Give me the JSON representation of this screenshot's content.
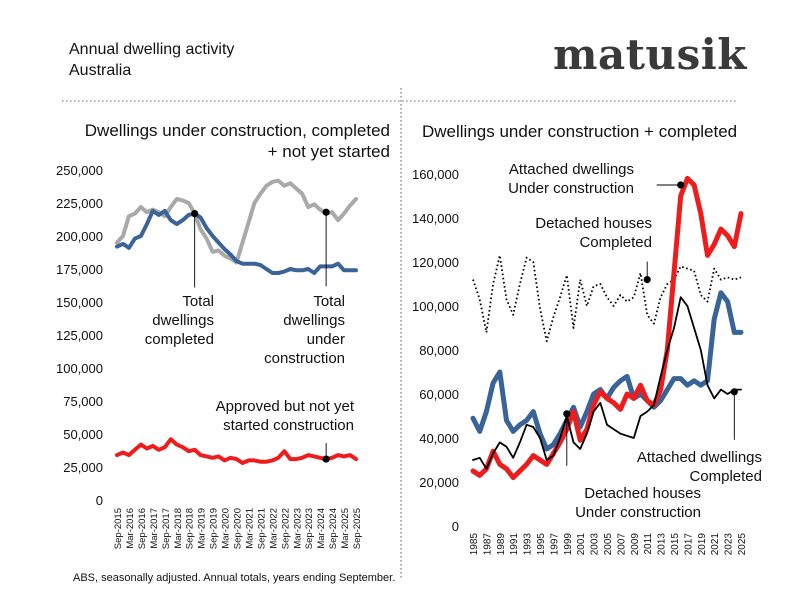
{
  "header": {
    "title": "Annual dwelling activity",
    "subtitle": "Australia",
    "brand": "matusik",
    "footer": "ABS, seasonally adjusted.  Annual totals, years ending September."
  },
  "colors": {
    "grey": "#a9a9a9",
    "blue": "#3a6397",
    "red": "#ee1c1c",
    "black": "#000000"
  },
  "chart_data": [
    {
      "type": "line",
      "title_lines": [
        "Dwellings under construction, completed",
        "+ not yet started"
      ],
      "ylim": [
        0,
        250000
      ],
      "yticks": [
        "0",
        "25,000",
        "50,000",
        "75,000",
        "100,000",
        "125,000",
        "150,000",
        "175,000",
        "200,000",
        "225,000",
        "250,000"
      ],
      "xlim": [
        2015.75,
        2025.75
      ],
      "xtick_labels": [
        "Sep-2015",
        "Mar-2016",
        "Sep-2016",
        "Mar-2017",
        "Sep-2017",
        "Mar-2018",
        "Sep-2018",
        "Mar-2019",
        "Sep-2019",
        "Mar-2020",
        "Sep-2020",
        "Mar-2021",
        "Sep-2021",
        "Mar-2022",
        "Sep-2022",
        "Mar-2023",
        "Sep-2023",
        "Mar-2024",
        "Sep-2024",
        "Mar-2025",
        "Sep-2025"
      ],
      "series": [
        {
          "color": "grey",
          "x": [
            2015.75,
            2016.0,
            2016.25,
            2016.5,
            2016.75,
            2017.0,
            2017.25,
            2017.5,
            2017.75,
            2018.0,
            2018.25,
            2018.5,
            2018.75,
            2019.0,
            2019.25,
            2019.5,
            2019.75,
            2020.0,
            2020.25,
            2020.5,
            2020.75,
            2021.0,
            2021.25,
            2021.5,
            2021.75,
            2022.0,
            2022.25,
            2022.5,
            2022.75,
            2023.0,
            2023.25,
            2023.5,
            2023.75,
            2024.0,
            2024.25,
            2024.5,
            2024.75,
            2025.0,
            2025.25,
            2025.5,
            2025.75
          ],
          "y": [
            195000,
            200000,
            215000,
            217000,
            222000,
            218000,
            220000,
            218000,
            215000,
            222000,
            228000,
            227000,
            225000,
            217000,
            205000,
            198000,
            188000,
            189000,
            185000,
            183000,
            180000,
            195000,
            210000,
            225000,
            232000,
            238000,
            241000,
            242000,
            238000,
            240000,
            236000,
            232000,
            222000,
            224000,
            220000,
            217000,
            218000,
            212000,
            217000,
            223000,
            228000
          ]
        },
        {
          "color": "blue",
          "x": [
            2015.75,
            2016.0,
            2016.25,
            2016.5,
            2016.75,
            2017.0,
            2017.25,
            2017.5,
            2017.75,
            2018.0,
            2018.25,
            2018.5,
            2018.75,
            2019.0,
            2019.25,
            2019.5,
            2019.75,
            2020.0,
            2020.25,
            2020.5,
            2020.75,
            2021.0,
            2021.25,
            2021.5,
            2021.75,
            2022.0,
            2022.25,
            2022.5,
            2022.75,
            2023.0,
            2023.25,
            2023.5,
            2023.75,
            2024.0,
            2024.25,
            2024.5,
            2024.75,
            2025.0,
            2025.25,
            2025.5,
            2025.75
          ],
          "y": [
            192000,
            194000,
            191000,
            198000,
            200000,
            209000,
            219000,
            216000,
            219000,
            212000,
            209000,
            212000,
            216000,
            217000,
            214000,
            206000,
            200000,
            195000,
            190000,
            186000,
            181000,
            179000,
            179000,
            179000,
            178000,
            175000,
            172000,
            172000,
            173000,
            175000,
            174000,
            174000,
            175000,
            172000,
            177000,
            177000,
            177000,
            179000,
            174000,
            174000,
            174000
          ]
        },
        {
          "color": "red",
          "x": [
            2015.75,
            2016.0,
            2016.25,
            2016.5,
            2016.75,
            2017.0,
            2017.25,
            2017.5,
            2017.75,
            2018.0,
            2018.25,
            2018.5,
            2018.75,
            2019.0,
            2019.25,
            2019.5,
            2019.75,
            2020.0,
            2020.25,
            2020.5,
            2020.75,
            2021.0,
            2021.25,
            2021.5,
            2021.75,
            2022.0,
            2022.25,
            2022.5,
            2022.75,
            2023.0,
            2023.25,
            2023.5,
            2023.75,
            2024.0,
            2024.25,
            2024.5,
            2024.75,
            2025.0,
            2025.25,
            2025.5,
            2025.75
          ],
          "y": [
            34000,
            36000,
            34000,
            38000,
            42000,
            39000,
            41000,
            38000,
            40000,
            46000,
            42000,
            40000,
            37000,
            38000,
            34000,
            33000,
            32000,
            33000,
            30000,
            32000,
            31000,
            28000,
            30000,
            30000,
            29000,
            29000,
            30000,
            32000,
            37000,
            31000,
            31000,
            32000,
            34000,
            33000,
            32000,
            31000,
            32000,
            34000,
            33000,
            34000,
            31000
          ]
        }
      ],
      "annotations": [
        {
          "lines": [
            "Total",
            "dwellings",
            "completed"
          ],
          "x": 2019.0,
          "y": 217000
        },
        {
          "lines": [
            "Total",
            "dwellings",
            "under",
            "construction"
          ],
          "x": 2024.5,
          "y": 218000
        },
        {
          "lines": [
            "Approved but not yet",
            "started construction"
          ],
          "x": 2024.5,
          "y": 31000
        }
      ]
    },
    {
      "type": "line",
      "title": "Dwellings under construction + completed",
      "ylim": [
        0,
        160000
      ],
      "yticks": [
        "0",
        "20,000",
        "40,000",
        "60,000",
        "80,000",
        "100,000",
        "120,000",
        "140,000",
        "160,000"
      ],
      "xlim": [
        1985,
        2025
      ],
      "xtick_labels": [
        "1985",
        "1987",
        "1989",
        "1991",
        "1993",
        "1995",
        "1997",
        "1999",
        "2001",
        "2003",
        "2005",
        "2007",
        "2009",
        "2011",
        "2013",
        "2015",
        "2017",
        "2019",
        "2021",
        "2023",
        "2025"
      ],
      "series": [
        {
          "color": "black",
          "dash": "dotted",
          "x": [
            1985,
            1986,
            1987,
            1988,
            1989,
            1990,
            1991,
            1992,
            1993,
            1994,
            1995,
            1996,
            1997,
            1998,
            1999,
            2000,
            2001,
            2002,
            2003,
            2004,
            2005,
            2006,
            2007,
            2008,
            2009,
            2010,
            2011,
            2012,
            2013,
            2014,
            2015,
            2016,
            2017,
            2018,
            2019,
            2020,
            2021,
            2022,
            2023,
            2024,
            2025
          ],
          "y": [
            112000,
            103000,
            88000,
            110000,
            123000,
            103000,
            96000,
            110000,
            122000,
            120000,
            99000,
            84000,
            95000,
            104000,
            114000,
            90000,
            112000,
            100000,
            109000,
            110000,
            104000,
            100000,
            105000,
            102000,
            104000,
            115000,
            96000,
            92000,
            104000,
            110000,
            112000,
            118000,
            117000,
            116000,
            105000,
            102000,
            117000,
            112000,
            113000,
            112000,
            113000
          ]
        },
        {
          "color": "blue",
          "x": [
            1985,
            1986,
            1987,
            1988,
            1989,
            1990,
            1991,
            1992,
            1993,
            1994,
            1995,
            1996,
            1997,
            1998,
            1999,
            2000,
            2001,
            2002,
            2003,
            2004,
            2005,
            2006,
            2007,
            2008,
            2009,
            2010,
            2011,
            2012,
            2013,
            2014,
            2015,
            2016,
            2017,
            2018,
            2019,
            2020,
            2021,
            2022,
            2023,
            2024,
            2025
          ],
          "y": [
            49000,
            43000,
            52000,
            65000,
            70000,
            48000,
            43000,
            46000,
            48000,
            52000,
            42000,
            35000,
            37000,
            42000,
            48000,
            54000,
            45000,
            52000,
            60000,
            62000,
            58000,
            63000,
            66000,
            68000,
            58000,
            60000,
            57000,
            54000,
            57000,
            62000,
            67000,
            67000,
            64000,
            66000,
            64000,
            66000,
            94000,
            106000,
            102000,
            88000,
            88000
          ]
        },
        {
          "color": "red",
          "x": [
            1985,
            1986,
            1987,
            1988,
            1989,
            1990,
            1991,
            1992,
            1993,
            1994,
            1995,
            1996,
            1997,
            1998,
            1999,
            2000,
            2001,
            2002,
            2003,
            2004,
            2005,
            2006,
            2007,
            2008,
            2009,
            2010,
            2011,
            2012,
            2013,
            2014,
            2015,
            2016,
            2017,
            2018,
            2019,
            2020,
            2021,
            2022,
            2023,
            2024,
            2025
          ],
          "y": [
            25000,
            23000,
            26000,
            34000,
            28000,
            26000,
            22000,
            25000,
            28000,
            32000,
            30000,
            28000,
            33000,
            38000,
            44000,
            52000,
            39000,
            44000,
            55000,
            61000,
            58000,
            56000,
            53000,
            60000,
            58000,
            64000,
            57000,
            55000,
            62000,
            80000,
            115000,
            150000,
            158000,
            155000,
            142000,
            123000,
            128000,
            135000,
            132000,
            127000,
            142000
          ]
        },
        {
          "color": "black",
          "x": [
            1985,
            1986,
            1987,
            1988,
            1989,
            1990,
            1991,
            1992,
            1993,
            1994,
            1995,
            1996,
            1997,
            1998,
            1999,
            2000,
            2001,
            2002,
            2003,
            2004,
            2005,
            2006,
            2007,
            2008,
            2009,
            2010,
            2011,
            2012,
            2013,
            2014,
            2015,
            2016,
            2017,
            2018,
            2019,
            2020,
            2021,
            2022,
            2023,
            2024,
            2025
          ],
          "y": [
            30000,
            31000,
            26000,
            33000,
            38000,
            36000,
            31000,
            38000,
            46000,
            45000,
            40000,
            30000,
            32000,
            40000,
            50000,
            38000,
            35000,
            42000,
            52000,
            56000,
            46000,
            44000,
            42000,
            41000,
            40000,
            50000,
            52000,
            55000,
            68000,
            80000,
            90000,
            104000,
            100000,
            90000,
            80000,
            64000,
            58000,
            62000,
            60000,
            62000,
            62000
          ]
        }
      ],
      "annotations": [
        {
          "lines": [
            "Attached dwellings",
            "Under construction"
          ],
          "x": 2016,
          "y": 155000
        },
        {
          "lines": [
            "Detached houses",
            "Completed"
          ],
          "x": 2011,
          "y": 112000
        },
        {
          "lines": [
            "Detached houses",
            "Under construction"
          ],
          "x": 1999,
          "y": 51000
        },
        {
          "lines": [
            "Attached dwellings",
            "Completed"
          ],
          "x": 2024,
          "y": 61000
        }
      ]
    }
  ]
}
